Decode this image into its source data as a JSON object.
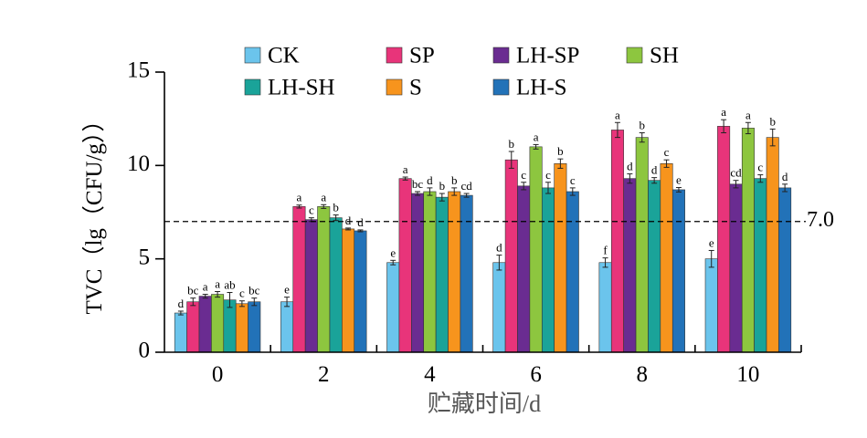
{
  "chart_data": {
    "type": "bar",
    "xlabel": "贮藏时间/d",
    "ylabel": "TVC（lg（CFU/g））",
    "categories": [
      "0",
      "2",
      "4",
      "6",
      "8",
      "10"
    ],
    "ylim": [
      0,
      15
    ],
    "yticks": [
      "0",
      "5",
      "10",
      "15"
    ],
    "reference_line": {
      "value": 7.0,
      "label": "7.0"
    },
    "legend_position": "top",
    "series": [
      {
        "name": "CK",
        "color": "#6BC4EC",
        "values": [
          2.1,
          2.7,
          4.8,
          4.8,
          4.8,
          5.0
        ],
        "errors": [
          0.1,
          0.25,
          0.12,
          0.4,
          0.25,
          0.45
        ],
        "letters": [
          "d",
          "e",
          "e",
          "d",
          "f",
          "e"
        ]
      },
      {
        "name": "SP",
        "color": "#E8347A",
        "values": [
          2.7,
          7.8,
          9.3,
          10.3,
          11.9,
          12.1
        ],
        "errors": [
          0.2,
          0.08,
          0.08,
          0.45,
          0.4,
          0.35
        ],
        "letters": [
          "bc",
          "a",
          "a",
          "b",
          "a",
          "a"
        ]
      },
      {
        "name": "LH-SP",
        "color": "#6A2C91",
        "values": [
          3.0,
          7.1,
          8.5,
          8.9,
          9.3,
          9.0
        ],
        "errors": [
          0.1,
          0.1,
          0.1,
          0.2,
          0.25,
          0.2
        ],
        "letters": [
          "a",
          "c",
          "bc",
          "c",
          "d",
          "cd"
        ]
      },
      {
        "name": "SH",
        "color": "#8DC63F",
        "values": [
          3.1,
          7.8,
          8.6,
          11.0,
          11.5,
          12.0
        ],
        "errors": [
          0.15,
          0.1,
          0.2,
          0.12,
          0.25,
          0.3
        ],
        "letters": [
          "a",
          "a",
          "d",
          "a",
          "b",
          "a"
        ]
      },
      {
        "name": "LH-SH",
        "color": "#1AA399",
        "values": [
          2.8,
          7.2,
          8.3,
          8.8,
          9.2,
          9.3
        ],
        "errors": [
          0.4,
          0.15,
          0.2,
          0.3,
          0.15,
          0.2
        ],
        "letters": [
          "ab",
          "b",
          "b",
          "c",
          "d",
          "c"
        ]
      },
      {
        "name": "S",
        "color": "#F7941D",
        "values": [
          2.6,
          6.6,
          8.6,
          10.1,
          10.1,
          11.5
        ],
        "errors": [
          0.15,
          0.05,
          0.2,
          0.25,
          0.2,
          0.45
        ],
        "letters": [
          "c",
          "d",
          "b",
          "b",
          "c",
          "b"
        ]
      },
      {
        "name": "LH-S",
        "color": "#2272B8",
        "values": [
          2.7,
          6.5,
          8.4,
          8.6,
          8.7,
          8.8
        ],
        "errors": [
          0.2,
          0.05,
          0.1,
          0.2,
          0.12,
          0.2
        ],
        "letters": [
          "bc",
          "d",
          "cd",
          "c",
          "e",
          "d"
        ]
      }
    ]
  }
}
